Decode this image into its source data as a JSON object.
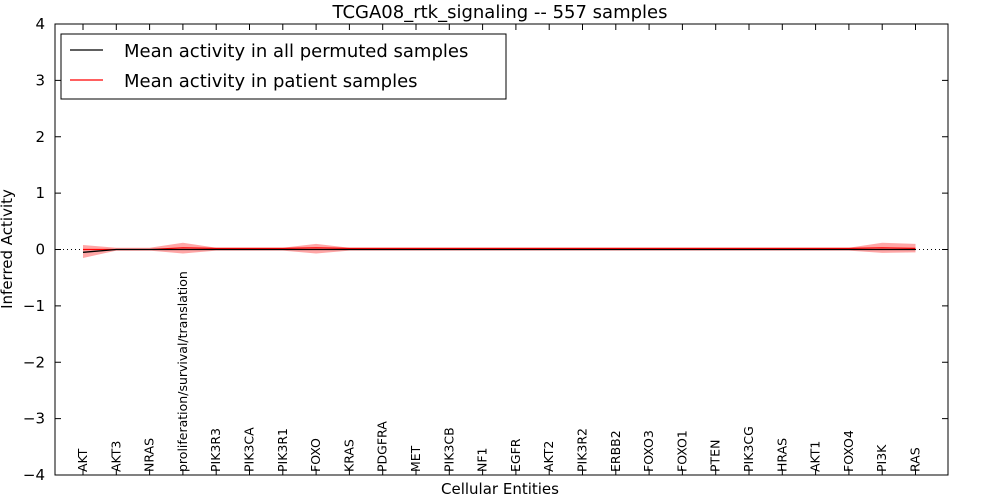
{
  "chart_data": {
    "type": "line",
    "title": "TCGA08_rtk_signaling -- 557 samples",
    "xlabel": "Cellular Entities",
    "ylabel": "Inferred Activity",
    "ylim": [
      -4,
      4
    ],
    "yticks": [
      4,
      3,
      2,
      1,
      0,
      -1,
      -2,
      -3,
      -4
    ],
    "ytick_labels": [
      "4",
      "3",
      "2",
      "1",
      "0",
      "−1",
      "−2",
      "−3",
      "−4"
    ],
    "categories": [
      "AKT",
      "AKT3",
      "NRAS",
      "proliferation/survival/translation",
      "PIK3R3",
      "PIK3CA",
      "PIK3R1",
      "FOXO",
      "KRAS",
      "PDGFRA",
      "MET",
      "PIK3CB",
      "NF1",
      "EGFR",
      "AKT2",
      "PIK3R2",
      "ERBB2",
      "FOXO3",
      "FOXO1",
      "PTEN",
      "PIK3CG",
      "HRAS",
      "AKT1",
      "FOXO4",
      "PI3K",
      "RAS"
    ],
    "series": [
      {
        "name": "Mean activity in all permuted samples",
        "color": "#000000",
        "values": [
          -0.05,
          0.0,
          0.0,
          0.0,
          0.0,
          0.0,
          0.0,
          0.0,
          0.0,
          0.0,
          0.0,
          0.0,
          0.0,
          0.0,
          0.0,
          0.0,
          0.0,
          0.0,
          0.0,
          0.0,
          0.0,
          0.0,
          0.0,
          0.0,
          0.0,
          0.0
        ]
      },
      {
        "name": "Mean activity in patient samples",
        "color": "#ff0000",
        "values": [
          0.0,
          0.0,
          0.0,
          0.03,
          0.02,
          0.02,
          0.02,
          0.03,
          0.02,
          0.02,
          0.02,
          0.02,
          0.02,
          0.02,
          0.02,
          0.02,
          0.02,
          0.02,
          0.02,
          0.02,
          0.02,
          0.02,
          0.02,
          0.02,
          0.03,
          0.02
        ],
        "band_lower": [
          -0.15,
          -0.02,
          -0.02,
          -0.07,
          -0.02,
          -0.02,
          -0.02,
          -0.07,
          -0.02,
          -0.02,
          -0.02,
          -0.02,
          -0.02,
          -0.02,
          -0.02,
          -0.02,
          -0.02,
          -0.02,
          -0.02,
          -0.02,
          -0.02,
          -0.02,
          -0.02,
          -0.02,
          -0.06,
          -0.05
        ],
        "band_upper": [
          0.08,
          0.03,
          0.03,
          0.12,
          0.03,
          0.03,
          0.03,
          0.1,
          0.03,
          0.03,
          0.03,
          0.03,
          0.03,
          0.03,
          0.03,
          0.03,
          0.03,
          0.03,
          0.03,
          0.03,
          0.03,
          0.03,
          0.03,
          0.03,
          0.12,
          0.1
        ]
      }
    ],
    "baseline": 0,
    "legend": "top-left",
    "band_color": "#ff0000",
    "grid": false
  }
}
